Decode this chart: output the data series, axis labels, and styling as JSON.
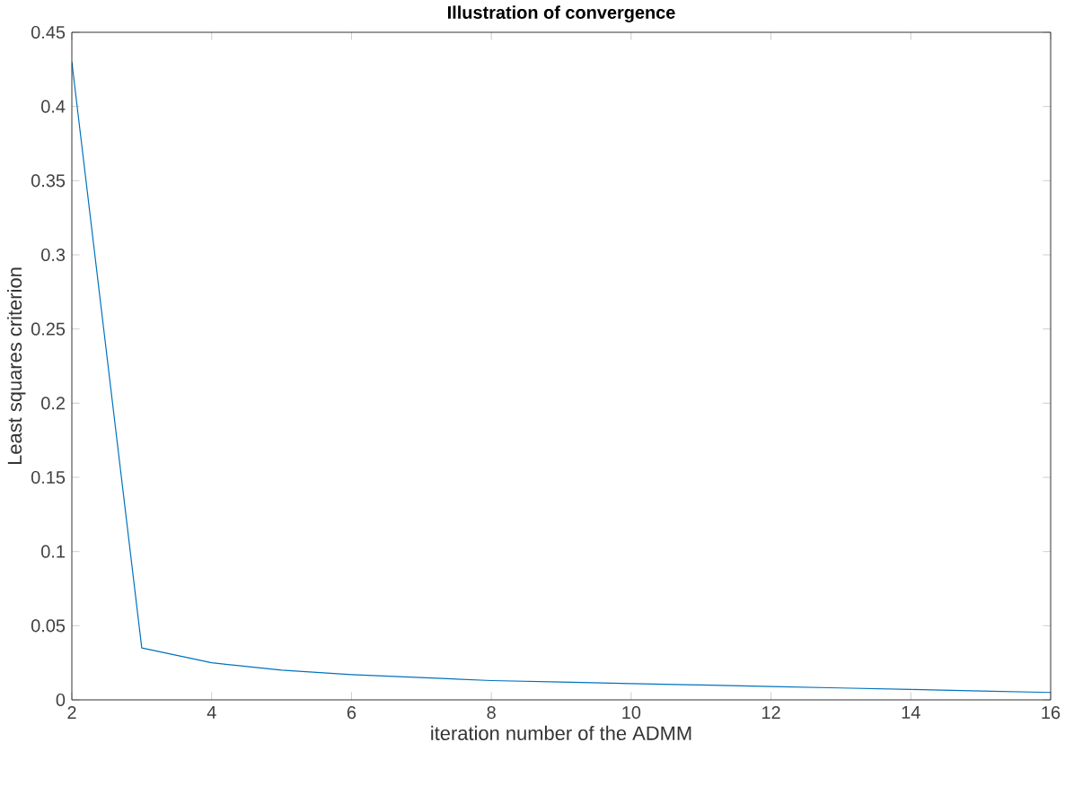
{
  "chart_data": {
    "type": "line",
    "title": "Illustration of convergence",
    "xlabel": "iteration number of the ADMM",
    "ylabel": "Least squares criterion",
    "x": [
      2,
      3,
      4,
      5,
      6,
      7,
      8,
      9,
      10,
      11,
      12,
      13,
      14,
      15,
      16
    ],
    "series": [
      {
        "color": "#0072bd",
        "values": [
          0.43,
          0.035,
          0.025,
          0.02,
          0.017,
          0.015,
          0.013,
          0.012,
          0.011,
          0.01,
          0.009,
          0.008,
          0.007,
          0.006,
          0.005
        ]
      }
    ],
    "xlim": [
      2,
      16
    ],
    "ylim": [
      0,
      0.45
    ],
    "xticks": [
      2,
      4,
      6,
      8,
      10,
      12,
      14,
      16
    ],
    "yticks": [
      0,
      0.05,
      0.1,
      0.15,
      0.2,
      0.25,
      0.3,
      0.35,
      0.4,
      0.45
    ],
    "grid": false,
    "marker": "none",
    "line_style": "solid"
  }
}
